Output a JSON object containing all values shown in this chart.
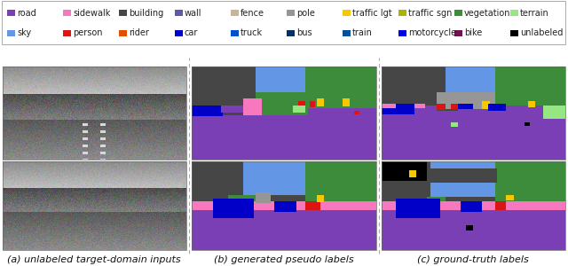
{
  "legend_items": [
    {
      "label": "road",
      "color": "#7b3fb5"
    },
    {
      "label": "sidewalk",
      "color": "#f878c0"
    },
    {
      "label": "building",
      "color": "#464646"
    },
    {
      "label": "wall",
      "color": "#5a5aaa"
    },
    {
      "label": "fence",
      "color": "#c8b496"
    },
    {
      "label": "pole",
      "color": "#969696"
    },
    {
      "label": "traffic lgt",
      "color": "#f5c800"
    },
    {
      "label": "traffic sgn",
      "color": "#aab400"
    },
    {
      "label": "vegetation",
      "color": "#3c8c3c"
    },
    {
      "label": "terrain",
      "color": "#96e682"
    },
    {
      "label": "sky",
      "color": "#6496e6"
    },
    {
      "label": "person",
      "color": "#dc1414"
    },
    {
      "label": "rider",
      "color": "#e05000"
    },
    {
      "label": "car",
      "color": "#0000c8"
    },
    {
      "label": "truck",
      "color": "#0050c8"
    },
    {
      "label": "bus",
      "color": "#003264"
    },
    {
      "label": "train",
      "color": "#005096"
    },
    {
      "label": "motorcycle",
      "color": "#0000e6"
    },
    {
      "label": "bike",
      "color": "#6e1450"
    },
    {
      "label": "unlabeled",
      "color": "#000000"
    }
  ],
  "col_labels": [
    "(a) unlabeled target-domain inputs",
    "(b) generated pseudo labels",
    "(c) ground-truth labels"
  ],
  "colors": {
    "road": "#7b3fb5",
    "sidewalk": "#f878c0",
    "building": "#464646",
    "wall": "#5a5aaa",
    "fence": "#c8b496",
    "pole": "#969696",
    "traffic_lgt": "#f5c800",
    "traffic_sgn": "#aab400",
    "vegetation": "#3c8c3c",
    "terrain": "#96e682",
    "sky": "#6496e6",
    "person": "#dc1414",
    "rider": "#e05000",
    "car": "#0000c8",
    "truck": "#0050c8",
    "bus": "#003264",
    "train": "#005096",
    "motorcycle": "#0000e6",
    "bike": "#6e1450",
    "unlabeled": "#000000",
    "black": "#000000"
  },
  "legend_fontsize": 7.0,
  "label_fontsize": 8.0,
  "background_color": "#ffffff"
}
